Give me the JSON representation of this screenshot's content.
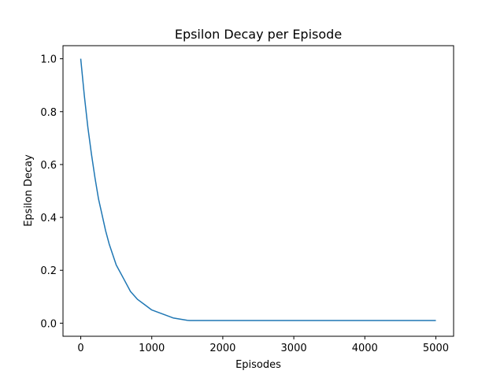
{
  "chart_data": {
    "type": "line",
    "title": "Epsilon Decay per Episode",
    "xlabel": "Episodes",
    "ylabel": "Epsilon Decay",
    "xlim": [
      -250,
      5250
    ],
    "ylim": [
      -0.0495,
      1.0495
    ],
    "xticks": [
      0,
      1000,
      2000,
      3000,
      4000,
      5000
    ],
    "yticks": [
      0.0,
      0.2,
      0.4,
      0.6,
      0.8,
      1.0
    ],
    "ytick_labels": [
      "0.0",
      "0.2",
      "0.4",
      "0.6",
      "0.8",
      "1.0"
    ],
    "grid": false,
    "legend": "none",
    "series": [
      {
        "color": "#1f77b4",
        "x": [
          0,
          50,
          100,
          150,
          200,
          250,
          300,
          350,
          400,
          450,
          500,
          600,
          700,
          800,
          900,
          1000,
          1100,
          1200,
          1300,
          1400,
          1500,
          1536,
          2000,
          2500,
          3000,
          3500,
          4000,
          4500,
          5000
        ],
        "y": [
          1.0,
          0.86,
          0.74,
          0.64,
          0.55,
          0.47,
          0.41,
          0.35,
          0.3,
          0.26,
          0.22,
          0.17,
          0.12,
          0.09,
          0.07,
          0.05,
          0.04,
          0.03,
          0.02,
          0.015,
          0.011,
          0.01,
          0.01,
          0.01,
          0.01,
          0.01,
          0.01,
          0.01,
          0.01
        ]
      }
    ]
  }
}
